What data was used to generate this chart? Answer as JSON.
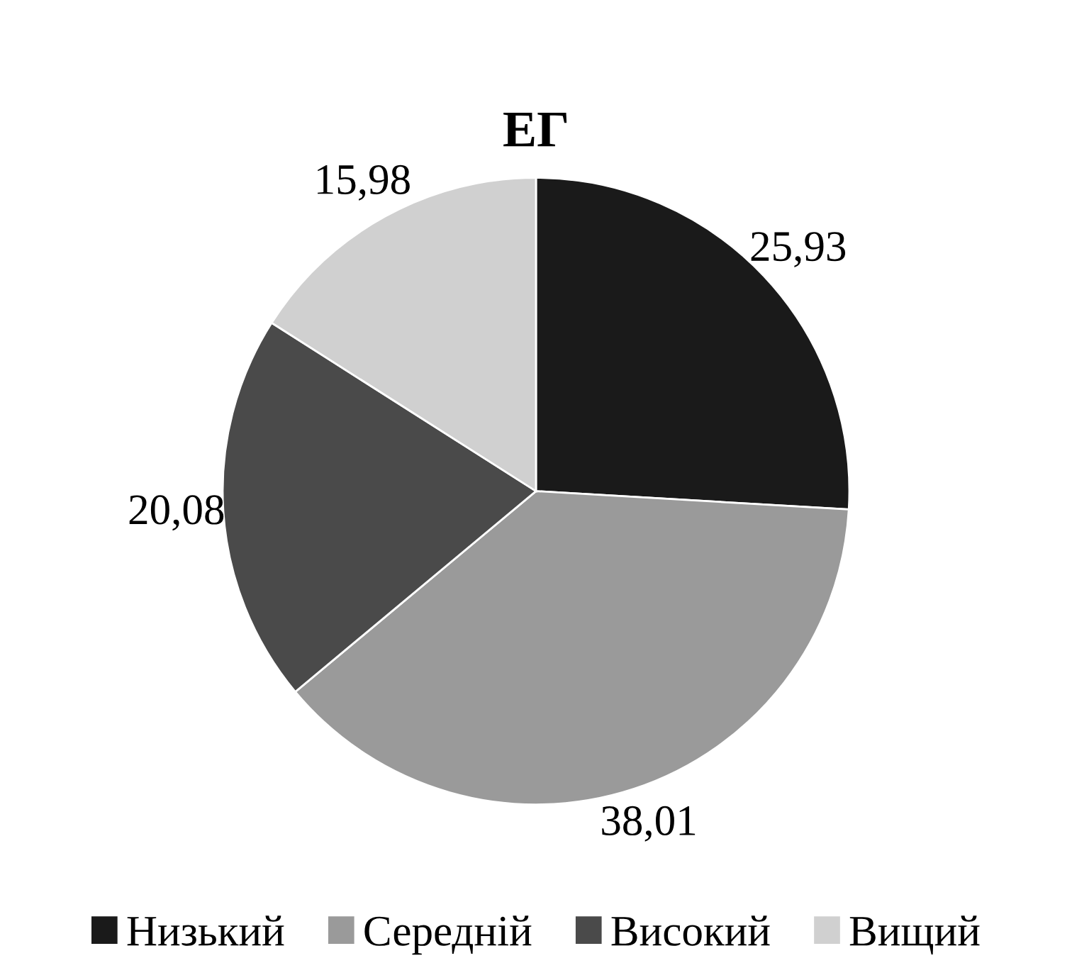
{
  "chart_data": {
    "type": "pie",
    "title": "ЕГ",
    "categories": [
      "Низький",
      "Середній",
      "Високий",
      "Вищий"
    ],
    "values": [
      25.93,
      38.01,
      20.08,
      15.98
    ],
    "value_labels": [
      "25,93",
      "38,01",
      "20,08",
      "15,98"
    ],
    "colors": [
      "#1a1a1a",
      "#9a9a9a",
      "#4a4a4a",
      "#d0d0d0"
    ],
    "legend": "bottom"
  }
}
